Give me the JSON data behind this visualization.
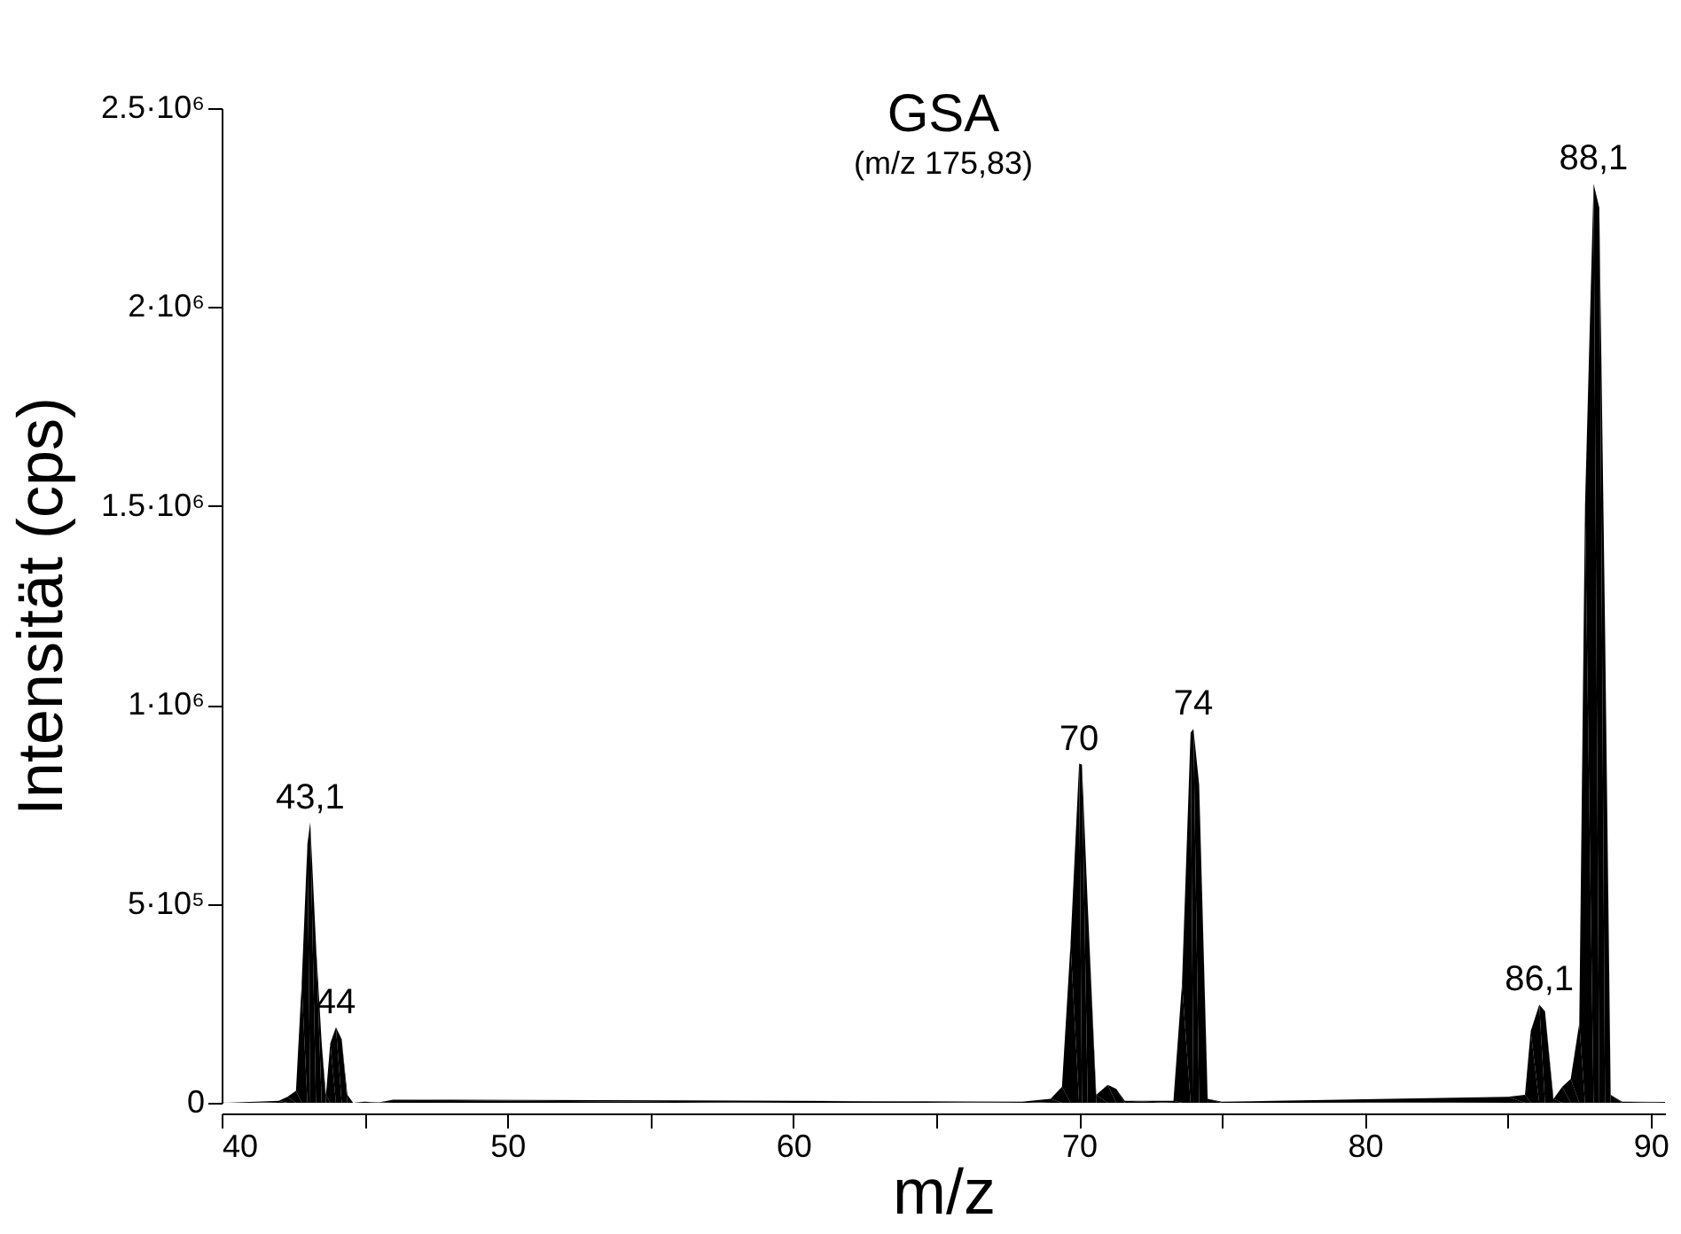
{
  "chart_data": {
    "type": "area",
    "title": "GSA",
    "subtitle": "(m/z 175,83)",
    "xlabel": "m/z",
    "ylabel": "Intensität (cps)",
    "x": [
      40,
      41,
      42,
      42.3,
      42.6,
      42.8,
      43.0,
      43.1,
      43.3,
      43.5,
      43.65,
      43.8,
      44.0,
      44.2,
      44.4,
      44.6,
      45,
      45.5,
      46,
      60,
      68,
      69,
      69.4,
      69.7,
      70.0,
      70.1,
      70.3,
      70.6,
      71.0,
      71.3,
      71.6,
      73.3,
      73.6,
      73.9,
      74.0,
      74.2,
      74.5,
      75,
      85,
      85.6,
      85.8,
      86.1,
      86.3,
      86.6,
      86.9,
      87.2,
      87.5,
      87.7,
      88.0,
      88.2,
      88.4,
      88.6,
      89,
      90.5
    ],
    "series": [
      {
        "color": "#000000",
        "values": [
          0,
          2000,
          5000,
          15000,
          30000,
          300000,
          650000,
          705000,
          400000,
          150000,
          20000,
          150000,
          190000,
          160000,
          20000,
          0,
          3000,
          1000,
          8000,
          5000,
          3000,
          10000,
          40000,
          400000,
          852000,
          850000,
          500000,
          20000,
          45000,
          35000,
          5000,
          5000,
          300000,
          930000,
          940000,
          800000,
          10000,
          3000,
          15000,
          20000,
          180000,
          247000,
          230000,
          10000,
          40000,
          60000,
          200000,
          1500000,
          2310000,
          2250000,
          1200000,
          20000,
          3000,
          2000
        ]
      }
    ],
    "xlim": [
      40,
      90.5
    ],
    "xticks": [
      40,
      {
        "value": 45,
        "label": null
      },
      50,
      {
        "value": 55,
        "label": null
      },
      60,
      {
        "value": 65,
        "label": null
      },
      70,
      {
        "value": 75,
        "label": null
      },
      80,
      {
        "value": 85,
        "label": null
      },
      90
    ],
    "ylim": [
      0,
      2500000
    ],
    "yticks": [
      0,
      {
        "value": 500000,
        "label": "5·10⁵"
      },
      {
        "value": 1000000,
        "label": "1·10⁶"
      },
      {
        "value": 1500000,
        "label": "1.5·10⁶"
      },
      {
        "value": 2000000,
        "label": "2·10⁶"
      },
      {
        "value": 2500000,
        "label": "2.5·10⁶"
      }
    ],
    "grid": false,
    "annotations": [
      {
        "text": "43,1",
        "x": 43.1,
        "y": 705000
      },
      {
        "text": "44",
        "x": 44.0,
        "y": 190000
      },
      {
        "text": "70",
        "x": 70.0,
        "y": 852000
      },
      {
        "text": "74",
        "x": 74.0,
        "y": 940000
      },
      {
        "text": "86,1",
        "x": 86.1,
        "y": 247000
      },
      {
        "text": "88,1",
        "x": 88.0,
        "y": 2310000
      }
    ]
  }
}
